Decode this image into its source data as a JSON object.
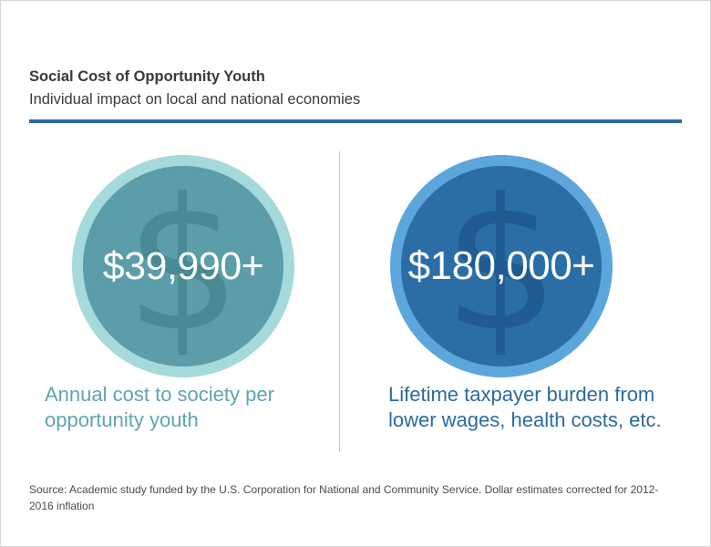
{
  "header": {
    "title": "Social Cost of Opportunity Youth",
    "subtitle": "Individual impact on local and national economies"
  },
  "stats": [
    {
      "value": "$39,990+",
      "description": "Annual cost to society per opportunity youth",
      "icon": "dollar-icon",
      "outer_color": "#a6d9da",
      "inner_color": "#5b9eaa",
      "text_color": "#5fa4b0"
    },
    {
      "value": "$180,000+",
      "description": "Lifetime taxpayer burden from lower wages, health costs, etc.",
      "icon": "dollar-icon",
      "outer_color": "#5ca6dc",
      "inner_color": "#2b6ea6",
      "text_color": "#2c6a9f"
    }
  ],
  "footer": {
    "source": "Source: Academic study funded by the U.S. Corporation for National and Community Service. Dollar estimates corrected for 2012-2016 inflation"
  },
  "colors": {
    "rule": "#2f6aa3",
    "heading_text": "#3a3a3a"
  }
}
